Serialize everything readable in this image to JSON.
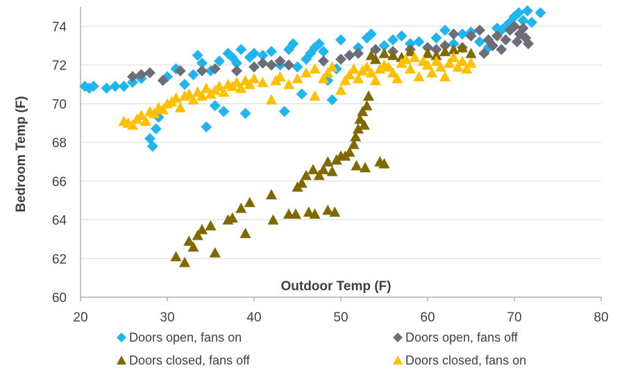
{
  "chart_data": {
    "type": "scatter",
    "title": "",
    "xlabel": "Outdoor Temp (F)",
    "ylabel": "Bedroom Temp (F)",
    "xlim": [
      20,
      80
    ],
    "ylim": [
      60,
      75
    ],
    "x_ticks": [
      20,
      30,
      40,
      50,
      60,
      70,
      80
    ],
    "y_ticks": [
      60,
      62,
      64,
      66,
      68,
      70,
      72,
      74
    ],
    "grid": "horizontal",
    "legend_position": "bottom",
    "series": [
      {
        "name": "Doors open, fans on",
        "marker": "diamond",
        "color": "#1FB5EE",
        "points": [
          [
            20.5,
            70.9
          ],
          [
            21.0,
            70.8
          ],
          [
            21.5,
            70.9
          ],
          [
            23.0,
            70.8
          ],
          [
            24.0,
            70.9
          ],
          [
            25.0,
            70.9
          ],
          [
            26.0,
            71.1
          ],
          [
            27.0,
            71.3
          ],
          [
            28.0,
            68.2
          ],
          [
            28.3,
            67.8
          ],
          [
            28.7,
            68.7
          ],
          [
            29.0,
            69.3
          ],
          [
            30.0,
            71.4
          ],
          [
            31.0,
            71.8
          ],
          [
            32.0,
            71.0
          ],
          [
            33.0,
            71.5
          ],
          [
            33.5,
            72.5
          ],
          [
            34.0,
            72.1
          ],
          [
            34.5,
            68.8
          ],
          [
            35.0,
            71.7
          ],
          [
            35.5,
            69.9
          ],
          [
            36.0,
            72.2
          ],
          [
            36.5,
            69.6
          ],
          [
            37.0,
            72.6
          ],
          [
            37.5,
            72.4
          ],
          [
            38.0,
            72.1
          ],
          [
            38.5,
            72.8
          ],
          [
            39.0,
            69.5
          ],
          [
            39.5,
            72.4
          ],
          [
            40.0,
            72.6
          ],
          [
            41.0,
            72.5
          ],
          [
            42.0,
            72.7
          ],
          [
            43.0,
            72.0
          ],
          [
            43.5,
            69.6
          ],
          [
            44.0,
            72.8
          ],
          [
            44.5,
            73.1
          ],
          [
            45.0,
            71.9
          ],
          [
            45.5,
            70.5
          ],
          [
            46.0,
            72.3
          ],
          [
            46.5,
            72.6
          ],
          [
            47.0,
            72.9
          ],
          [
            47.5,
            73.1
          ],
          [
            48.0,
            72.7
          ],
          [
            48.5,
            71.2
          ],
          [
            49.0,
            70.2
          ],
          [
            49.5,
            71.8
          ],
          [
            50.0,
            73.3
          ],
          [
            51.0,
            72.5
          ],
          [
            52.0,
            72.9
          ],
          [
            53.0,
            73.4
          ],
          [
            53.5,
            73.6
          ],
          [
            54.0,
            72.8
          ],
          [
            55.0,
            73.0
          ],
          [
            56.0,
            73.3
          ],
          [
            57.0,
            73.5
          ],
          [
            58.0,
            73.1
          ],
          [
            59.0,
            73.2
          ],
          [
            60.0,
            72.9
          ],
          [
            61.0,
            73.4
          ],
          [
            62.0,
            73.8
          ],
          [
            63.0,
            73.1
          ],
          [
            64.0,
            73.6
          ],
          [
            65.0,
            73.7
          ],
          [
            66.0,
            73.2
          ],
          [
            67.0,
            72.9
          ],
          [
            68.0,
            73.9
          ],
          [
            68.5,
            73.8
          ],
          [
            69.0,
            74.0
          ],
          [
            69.5,
            74.2
          ],
          [
            70.0,
            74.5
          ],
          [
            70.5,
            74.7
          ],
          [
            71.0,
            74.3
          ],
          [
            71.5,
            74.8
          ],
          [
            72.0,
            74.2
          ],
          [
            73.0,
            74.7
          ]
        ]
      },
      {
        "name": "Doors open, fans off",
        "marker": "diamond",
        "color": "#6B6E78",
        "points": [
          [
            26.0,
            71.4
          ],
          [
            27.0,
            71.5
          ],
          [
            28.0,
            71.6
          ],
          [
            29.5,
            71.2
          ],
          [
            31.5,
            71.7
          ],
          [
            34.0,
            71.7
          ],
          [
            35.5,
            71.8
          ],
          [
            38.0,
            71.7
          ],
          [
            40.0,
            71.9
          ],
          [
            41.0,
            72.1
          ],
          [
            42.0,
            72.0
          ],
          [
            43.0,
            72.2
          ],
          [
            44.0,
            72.0
          ],
          [
            48.0,
            72.2
          ],
          [
            50.0,
            72.3
          ],
          [
            51.0,
            72.5
          ],
          [
            52.0,
            72.6
          ],
          [
            54.0,
            72.8
          ],
          [
            56.0,
            72.7
          ],
          [
            58.0,
            72.8
          ],
          [
            60.0,
            72.9
          ],
          [
            61.0,
            72.8
          ],
          [
            62.0,
            73.0
          ],
          [
            63.0,
            73.6
          ],
          [
            64.0,
            72.9
          ],
          [
            65.0,
            73.5
          ],
          [
            66.0,
            73.8
          ],
          [
            66.5,
            72.6
          ],
          [
            67.0,
            73.3
          ],
          [
            67.5,
            73.0
          ],
          [
            68.0,
            73.5
          ],
          [
            68.5,
            72.8
          ],
          [
            69.0,
            73.3
          ],
          [
            69.5,
            73.8
          ],
          [
            70.0,
            74.0
          ],
          [
            70.3,
            73.2
          ],
          [
            70.6,
            73.6
          ],
          [
            71.0,
            73.9
          ],
          [
            71.3,
            73.4
          ],
          [
            71.6,
            73.1
          ]
        ]
      },
      {
        "name": "Doors closed, fans off",
        "marker": "triangle",
        "color": "#7F6900",
        "points": [
          [
            31.0,
            62.1
          ],
          [
            32.0,
            61.8
          ],
          [
            32.5,
            62.9
          ],
          [
            33.0,
            62.6
          ],
          [
            33.5,
            63.2
          ],
          [
            34.0,
            63.5
          ],
          [
            35.0,
            63.7
          ],
          [
            35.5,
            62.3
          ],
          [
            37.0,
            64.0
          ],
          [
            37.5,
            64.1
          ],
          [
            38.5,
            64.6
          ],
          [
            39.0,
            63.3
          ],
          [
            39.5,
            64.9
          ],
          [
            42.0,
            65.3
          ],
          [
            42.2,
            64.0
          ],
          [
            44.0,
            64.3
          ],
          [
            44.8,
            64.3
          ],
          [
            45.0,
            65.7
          ],
          [
            45.5,
            65.9
          ],
          [
            46.0,
            66.3
          ],
          [
            46.3,
            64.4
          ],
          [
            46.8,
            66.6
          ],
          [
            47.0,
            64.3
          ],
          [
            47.5,
            66.3
          ],
          [
            48.0,
            66.6
          ],
          [
            48.5,
            67.0
          ],
          [
            48.5,
            64.5
          ],
          [
            49.0,
            66.5
          ],
          [
            49.3,
            64.4
          ],
          [
            49.5,
            67.1
          ],
          [
            50.0,
            67.3
          ],
          [
            50.5,
            67.3
          ],
          [
            51.0,
            67.5
          ],
          [
            51.5,
            67.9
          ],
          [
            51.7,
            68.3
          ],
          [
            51.8,
            66.8
          ],
          [
            52.0,
            68.7
          ],
          [
            52.2,
            69.2
          ],
          [
            52.5,
            69.6
          ],
          [
            52.7,
            68.9
          ],
          [
            52.8,
            66.7
          ],
          [
            53.0,
            69.9
          ],
          [
            53.2,
            70.4
          ],
          [
            53.5,
            72.5
          ],
          [
            54.0,
            72.3
          ],
          [
            54.5,
            67.0
          ],
          [
            55.0,
            66.9
          ],
          [
            55.0,
            72.6
          ],
          [
            56.0,
            72.5
          ],
          [
            57.0,
            72.4
          ],
          [
            58.0,
            72.7
          ],
          [
            60.0,
            72.6
          ],
          [
            61.0,
            72.5
          ],
          [
            62.0,
            72.7
          ],
          [
            63.0,
            72.8
          ],
          [
            64.0,
            72.9
          ],
          [
            65.0,
            72.6
          ]
        ]
      },
      {
        "name": "Doors closed, fans on",
        "marker": "triangle",
        "color": "#FFC000",
        "points": [
          [
            25.0,
            69.1
          ],
          [
            25.5,
            69.0
          ],
          [
            26.0,
            68.9
          ],
          [
            26.5,
            69.2
          ],
          [
            27.0,
            69.4
          ],
          [
            27.5,
            69.1
          ],
          [
            28.0,
            69.6
          ],
          [
            28.5,
            69.5
          ],
          [
            29.0,
            69.8
          ],
          [
            29.5,
            69.7
          ],
          [
            30.0,
            70.0
          ],
          [
            30.5,
            70.1
          ],
          [
            31.0,
            70.3
          ],
          [
            31.5,
            69.8
          ],
          [
            32.0,
            70.4
          ],
          [
            32.5,
            70.5
          ],
          [
            33.0,
            70.2
          ],
          [
            33.5,
            70.6
          ],
          [
            34.0,
            70.4
          ],
          [
            34.5,
            70.8
          ],
          [
            35.0,
            70.5
          ],
          [
            35.5,
            70.7
          ],
          [
            36.0,
            70.9
          ],
          [
            36.5,
            70.6
          ],
          [
            37.0,
            71.0
          ],
          [
            37.5,
            70.9
          ],
          [
            38.0,
            71.1
          ],
          [
            38.5,
            70.8
          ],
          [
            39.0,
            71.2
          ],
          [
            39.5,
            71.0
          ],
          [
            40.0,
            71.3
          ],
          [
            41.0,
            71.1
          ],
          [
            42.0,
            70.2
          ],
          [
            42.5,
            71.2
          ],
          [
            43.0,
            71.4
          ],
          [
            44.0,
            71.0
          ],
          [
            45.0,
            71.3
          ],
          [
            46.0,
            71.6
          ],
          [
            47.0,
            71.8
          ],
          [
            47.0,
            70.4
          ],
          [
            48.0,
            71.3
          ],
          [
            48.5,
            71.6
          ],
          [
            49.0,
            71.9
          ],
          [
            50.0,
            70.7
          ],
          [
            50.5,
            71.2
          ],
          [
            51.0,
            71.5
          ],
          [
            51.5,
            71.8
          ],
          [
            52.0,
            71.3
          ],
          [
            52.5,
            71.7
          ],
          [
            53.0,
            71.9
          ],
          [
            53.5,
            71.6
          ],
          [
            54.0,
            71.2
          ],
          [
            54.5,
            71.8
          ],
          [
            55.0,
            72.0
          ],
          [
            55.5,
            71.9
          ],
          [
            56.0,
            71.6
          ],
          [
            56.5,
            71.3
          ],
          [
            57.0,
            72.1
          ],
          [
            57.5,
            72.3
          ],
          [
            58.0,
            71.8
          ],
          [
            58.5,
            72.4
          ],
          [
            59.0,
            71.4
          ],
          [
            59.5,
            72.2
          ],
          [
            60.0,
            72.0
          ],
          [
            60.5,
            71.6
          ],
          [
            61.0,
            72.2
          ],
          [
            61.5,
            71.9
          ],
          [
            62.0,
            71.4
          ],
          [
            62.5,
            72.1
          ],
          [
            63.0,
            72.4
          ],
          [
            63.5,
            71.9
          ],
          [
            64.0,
            72.2
          ],
          [
            64.5,
            71.8
          ],
          [
            65.0,
            72.1
          ]
        ]
      }
    ]
  }
}
